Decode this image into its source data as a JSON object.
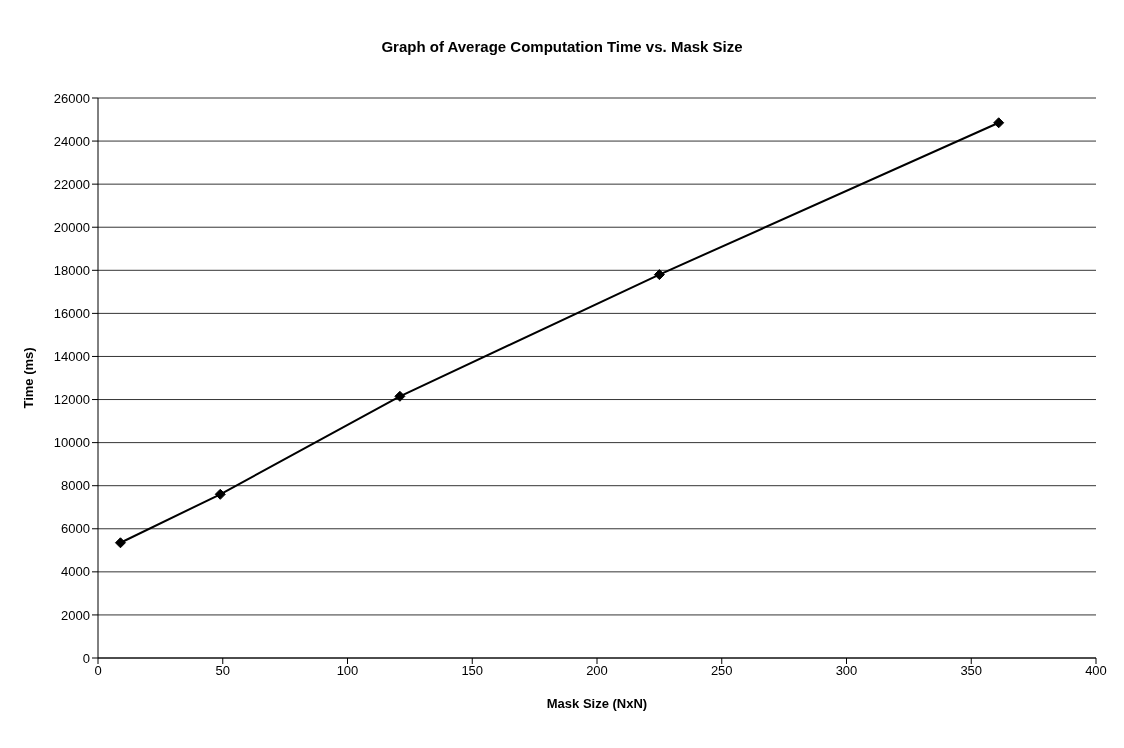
{
  "chart_data": {
    "type": "line",
    "title": "Graph of Average Computation Time vs. Mask Size",
    "xlabel": "Mask Size (NxN)",
    "ylabel": "Time (ms)",
    "x": [
      9,
      49,
      121,
      225,
      361
    ],
    "series": [
      {
        "color": "#000000",
        "values": [
          5350,
          7600,
          12150,
          17800,
          24850
        ]
      }
    ],
    "xlim": [
      0,
      400
    ],
    "xticks": [
      0,
      50,
      100,
      150,
      200,
      250,
      300,
      350,
      400
    ],
    "ylim": [
      0,
      26000
    ],
    "yticks": [
      0,
      2000,
      4000,
      6000,
      8000,
      10000,
      12000,
      14000,
      16000,
      18000,
      20000,
      22000,
      24000,
      26000
    ],
    "grid": "y",
    "legend": false,
    "marker": "diamond",
    "line_style": "solid"
  }
}
